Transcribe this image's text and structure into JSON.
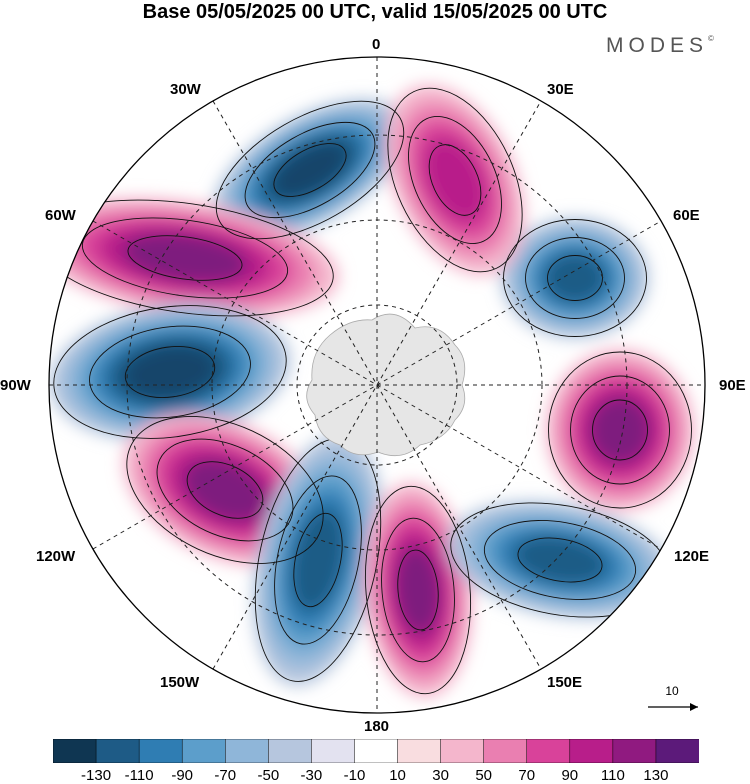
{
  "header": {
    "title": "Base 05/05/2025 00 UTC, valid 15/05/2025 00 UTC",
    "brand": "MODES"
  },
  "longitude_labels": [
    "0",
    "30E",
    "60E",
    "90E",
    "120E",
    "150E",
    "180",
    "150W",
    "120W",
    "90W",
    "60W",
    "30W"
  ],
  "vector_key": {
    "label": "10"
  },
  "legend": {
    "colors": [
      "#0f3652",
      "#1e5b86",
      "#2f7db3",
      "#5c9ecb",
      "#8fb6d9",
      "#b6c6de",
      "#e3e2f0",
      "#ffffff",
      "#f9dde0",
      "#f4b6cc",
      "#ea7fb1",
      "#d9429a",
      "#b81e8a",
      "#901a80",
      "#5c1a7a"
    ],
    "ticks": [
      "-130",
      "-110",
      "-90",
      "-70",
      "-50",
      "-30",
      "-10",
      "10",
      "30",
      "50",
      "70",
      "90",
      "110",
      "130"
    ]
  },
  "anomaly_centers": [
    {
      "sign": "negative",
      "value": -110,
      "lon": "20W"
    },
    {
      "sign": "positive",
      "value": 110,
      "lon": "55W"
    },
    {
      "sign": "negative",
      "value": -110,
      "lon": "85W"
    },
    {
      "sign": "positive",
      "value": 110,
      "lon": "120W"
    },
    {
      "sign": "negative",
      "value": -90,
      "lon": "155W"
    },
    {
      "sign": "positive",
      "value": 110,
      "lon": "170E"
    },
    {
      "sign": "negative",
      "value": -90,
      "lon": "125E"
    },
    {
      "sign": "positive",
      "value": 110,
      "lon": "95E"
    },
    {
      "sign": "negative",
      "value": -90,
      "lon": "55E"
    },
    {
      "sign": "positive",
      "value": 70,
      "lon": "15E"
    }
  ]
}
